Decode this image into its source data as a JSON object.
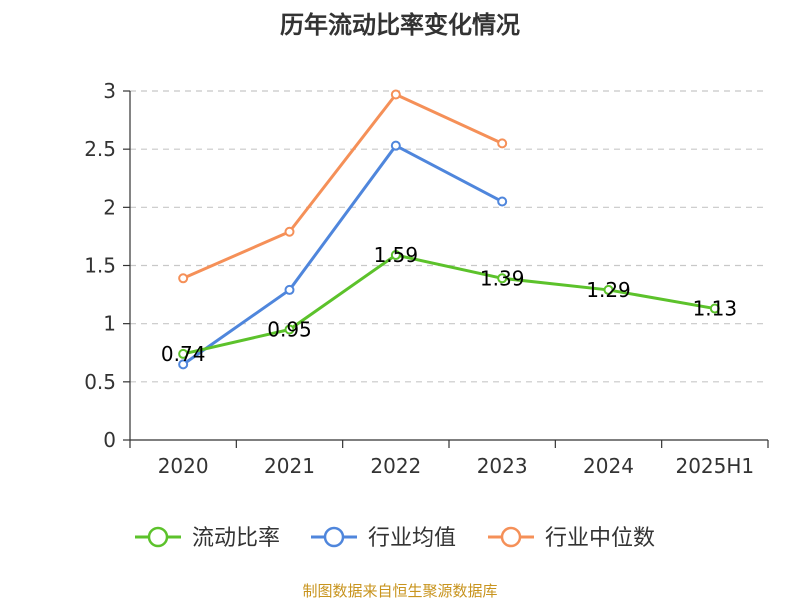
{
  "chart_data": {
    "type": "line",
    "title": "历年流动比率变化情况",
    "categories": [
      "2020",
      "2021",
      "2022",
      "2023",
      "2024",
      "2025H1"
    ],
    "ylim": [
      0,
      3
    ],
    "yticks": [
      0,
      0.5,
      1,
      1.5,
      2,
      2.5,
      3
    ],
    "ytick_labels": [
      "0",
      "0.5",
      "1",
      "1.5",
      "2",
      "2.5",
      "3"
    ],
    "grid": true,
    "legend_position": "bottom",
    "series": [
      {
        "name": "流动比率",
        "color": "#5cc22b",
        "values": [
          0.74,
          0.95,
          1.59,
          1.39,
          1.29,
          1.13
        ],
        "labels": [
          "0.74",
          "0.95",
          "1.59",
          "1.39",
          "1.29",
          "1.13"
        ]
      },
      {
        "name": "行业均值",
        "color": "#4f86dc",
        "values": [
          0.65,
          1.29,
          2.53,
          2.05,
          null,
          null
        ]
      },
      {
        "name": "行业中位数",
        "color": "#f59058",
        "values": [
          1.39,
          1.79,
          2.97,
          2.55,
          null,
          null
        ]
      }
    ]
  },
  "footer": "制图数据来自恒生聚源数据库"
}
